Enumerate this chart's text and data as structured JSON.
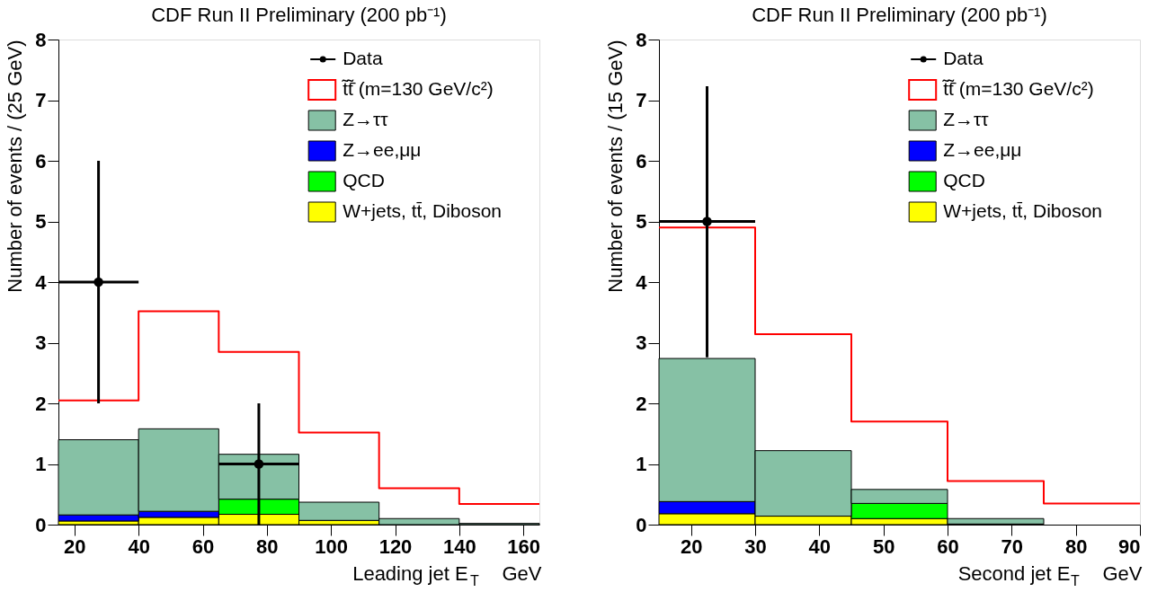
{
  "chart_data": [
    {
      "type": "bar",
      "title": "CDF Run II Preliminary (200 pb⁻¹)",
      "xlabel": "Leading jet E$_{T}$    GeV",
      "ylabel": "Number of events / (25 GeV)",
      "x": [
        27.5,
        52.5,
        77.5,
        102.5,
        127.5,
        152.5
      ],
      "stacked": true,
      "xlim": [
        15,
        165
      ],
      "xticks": [
        20,
        40,
        60,
        80,
        100,
        120,
        140,
        160
      ],
      "ylim": [
        0,
        8
      ],
      "yticks": [
        0,
        1,
        2,
        3,
        4,
        5,
        6,
        7,
        8
      ],
      "legend": "top right",
      "series": [
        {
          "name": "W+jets, tt̄, Diboson",
          "color": "#ffff00",
          "values": [
            0.06,
            0.12,
            0.17,
            0.07,
            null,
            null
          ]
        },
        {
          "name": "QCD",
          "color": "#00ff00",
          "values": [
            null,
            null,
            0.25,
            null,
            null,
            null
          ]
        },
        {
          "name": "Z→ee,μμ",
          "color": "#0000ff",
          "values": [
            0.1,
            0.1,
            null,
            null,
            null,
            null
          ]
        },
        {
          "name": "Z→ττ",
          "color": "#86c1a5",
          "values": [
            1.24,
            1.36,
            0.74,
            0.3,
            0.1,
            0.02
          ]
        },
        {
          "name": "t̃t̃̄ (m=130 GeV/c²)",
          "type": "step",
          "color": "#ff0000",
          "x": [
            15,
            40,
            65,
            90,
            115,
            140,
            165
          ],
          "values": [
            2.05,
            3.52,
            2.85,
            1.52,
            0.6,
            0.34,
            0.34
          ]
        },
        {
          "name": "Data",
          "type": "scatter",
          "color": "#000000",
          "x": [
            27.5,
            77.5
          ],
          "values": [
            4,
            1
          ],
          "errors": [
            [
              2,
              6
            ],
            [
              0,
              2
            ]
          ],
          "xerrors": [
            12.5,
            12.5
          ]
        }
      ]
    },
    {
      "type": "bar",
      "title": "CDF Run II Preliminary (200 pb⁻¹)",
      "xlabel": "Second jet E$_{T}$    GeV",
      "ylabel": "Number of events / (15 GeV)",
      "x": [
        22.5,
        37.5,
        52.5,
        67.5
      ],
      "stacked": true,
      "xlim": [
        15,
        90
      ],
      "xticks": [
        20,
        30,
        40,
        50,
        60,
        70,
        80,
        90
      ],
      "ylim": [
        0,
        8
      ],
      "yticks": [
        0,
        1,
        2,
        3,
        4,
        5,
        6,
        7,
        8
      ],
      "legend": "top right",
      "series": [
        {
          "name": "W+jets, tt̄, Diboson",
          "color": "#ffff00",
          "values": [
            0.18,
            0.14,
            0.1,
            0.01
          ]
        },
        {
          "name": "QCD",
          "color": "#00ff00",
          "values": [
            null,
            null,
            0.25,
            null
          ]
        },
        {
          "name": "Z→ee,μμ",
          "color": "#0000ff",
          "values": [
            0.2,
            null,
            null,
            null
          ]
        },
        {
          "name": "Z→ττ",
          "color": "#86c1a5",
          "values": [
            2.36,
            1.08,
            0.23,
            0.09
          ]
        },
        {
          "name": "t̃t̃̄ (m=130 GeV/c²)",
          "type": "step",
          "color": "#ff0000",
          "x": [
            15,
            30,
            45,
            60,
            75,
            90
          ],
          "values": [
            4.9,
            3.14,
            1.7,
            0.72,
            0.35,
            0.35
          ]
        },
        {
          "name": "Data",
          "type": "scatter",
          "color": "#000000",
          "x": [
            22.5
          ],
          "values": [
            5
          ],
          "errors": [
            [
              2.76,
              7.23
            ]
          ],
          "xerrors": [
            7.5
          ]
        }
      ]
    }
  ]
}
